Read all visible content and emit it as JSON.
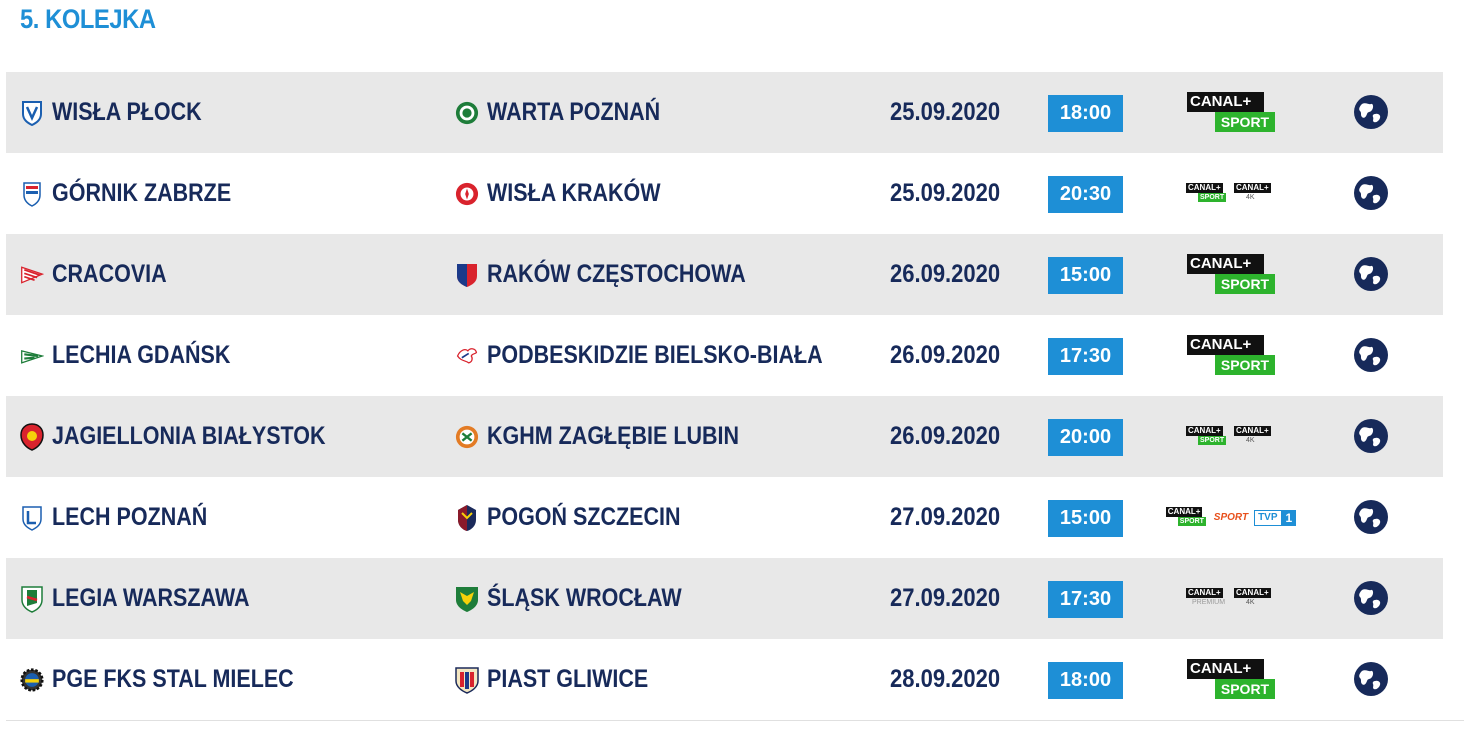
{
  "round_title": "5. KOLEJKA",
  "colors": {
    "accent": "#1e8fd6",
    "text": "#172a5a",
    "row_shade": "#e8e8e8",
    "canal_green": "#2db32d"
  },
  "matches": [
    {
      "home": "WISŁA PŁOCK",
      "away": "WARTA POZNAŃ",
      "date": "25.09.2020",
      "time": "18:00",
      "tv": "canal-plus-sport"
    },
    {
      "home": "GÓRNIK ZABRZE",
      "away": "WISŁA KRAKÓW",
      "date": "25.09.2020",
      "time": "20:30",
      "tv": "canal-plus-sport-and-4k"
    },
    {
      "home": "CRACOVIA",
      "away": "RAKÓW CZĘSTOCHOWA",
      "date": "26.09.2020",
      "time": "15:00",
      "tv": "canal-plus-sport"
    },
    {
      "home": "LECHIA GDAŃSK",
      "away": "PODBESKIDZIE BIELSKO-BIAŁA",
      "date": "26.09.2020",
      "time": "17:30",
      "tv": "canal-plus-sport"
    },
    {
      "home": "JAGIELLONIA BIAŁYSTOK",
      "away": "KGHM ZAGŁĘBIE LUBIN",
      "date": "26.09.2020",
      "time": "20:00",
      "tv": "canal-plus-sport-and-4k"
    },
    {
      "home": "LECH POZNAŃ",
      "away": "POGOŃ SZCZECIN",
      "date": "27.09.2020",
      "time": "15:00",
      "tv": "canal-plus-sport-tvp-sport-tvp1"
    },
    {
      "home": "LEGIA WARSZAWA",
      "away": "ŚLĄSK WROCŁAW",
      "date": "27.09.2020",
      "time": "17:30",
      "tv": "canal-plus-premium-and-4k"
    },
    {
      "home": "PGE FKS STAL MIELEC",
      "away": "PIAST GLIWICE",
      "date": "28.09.2020",
      "time": "18:00",
      "tv": "canal-plus-sport"
    }
  ],
  "tv_logos": {
    "canal": "CANAL+",
    "sport": "SPORT",
    "k4": "4K",
    "premium": "PREMIUM",
    "tvp_sport": "SPORT",
    "tvp": "TVP",
    "tvp_one": "1"
  }
}
